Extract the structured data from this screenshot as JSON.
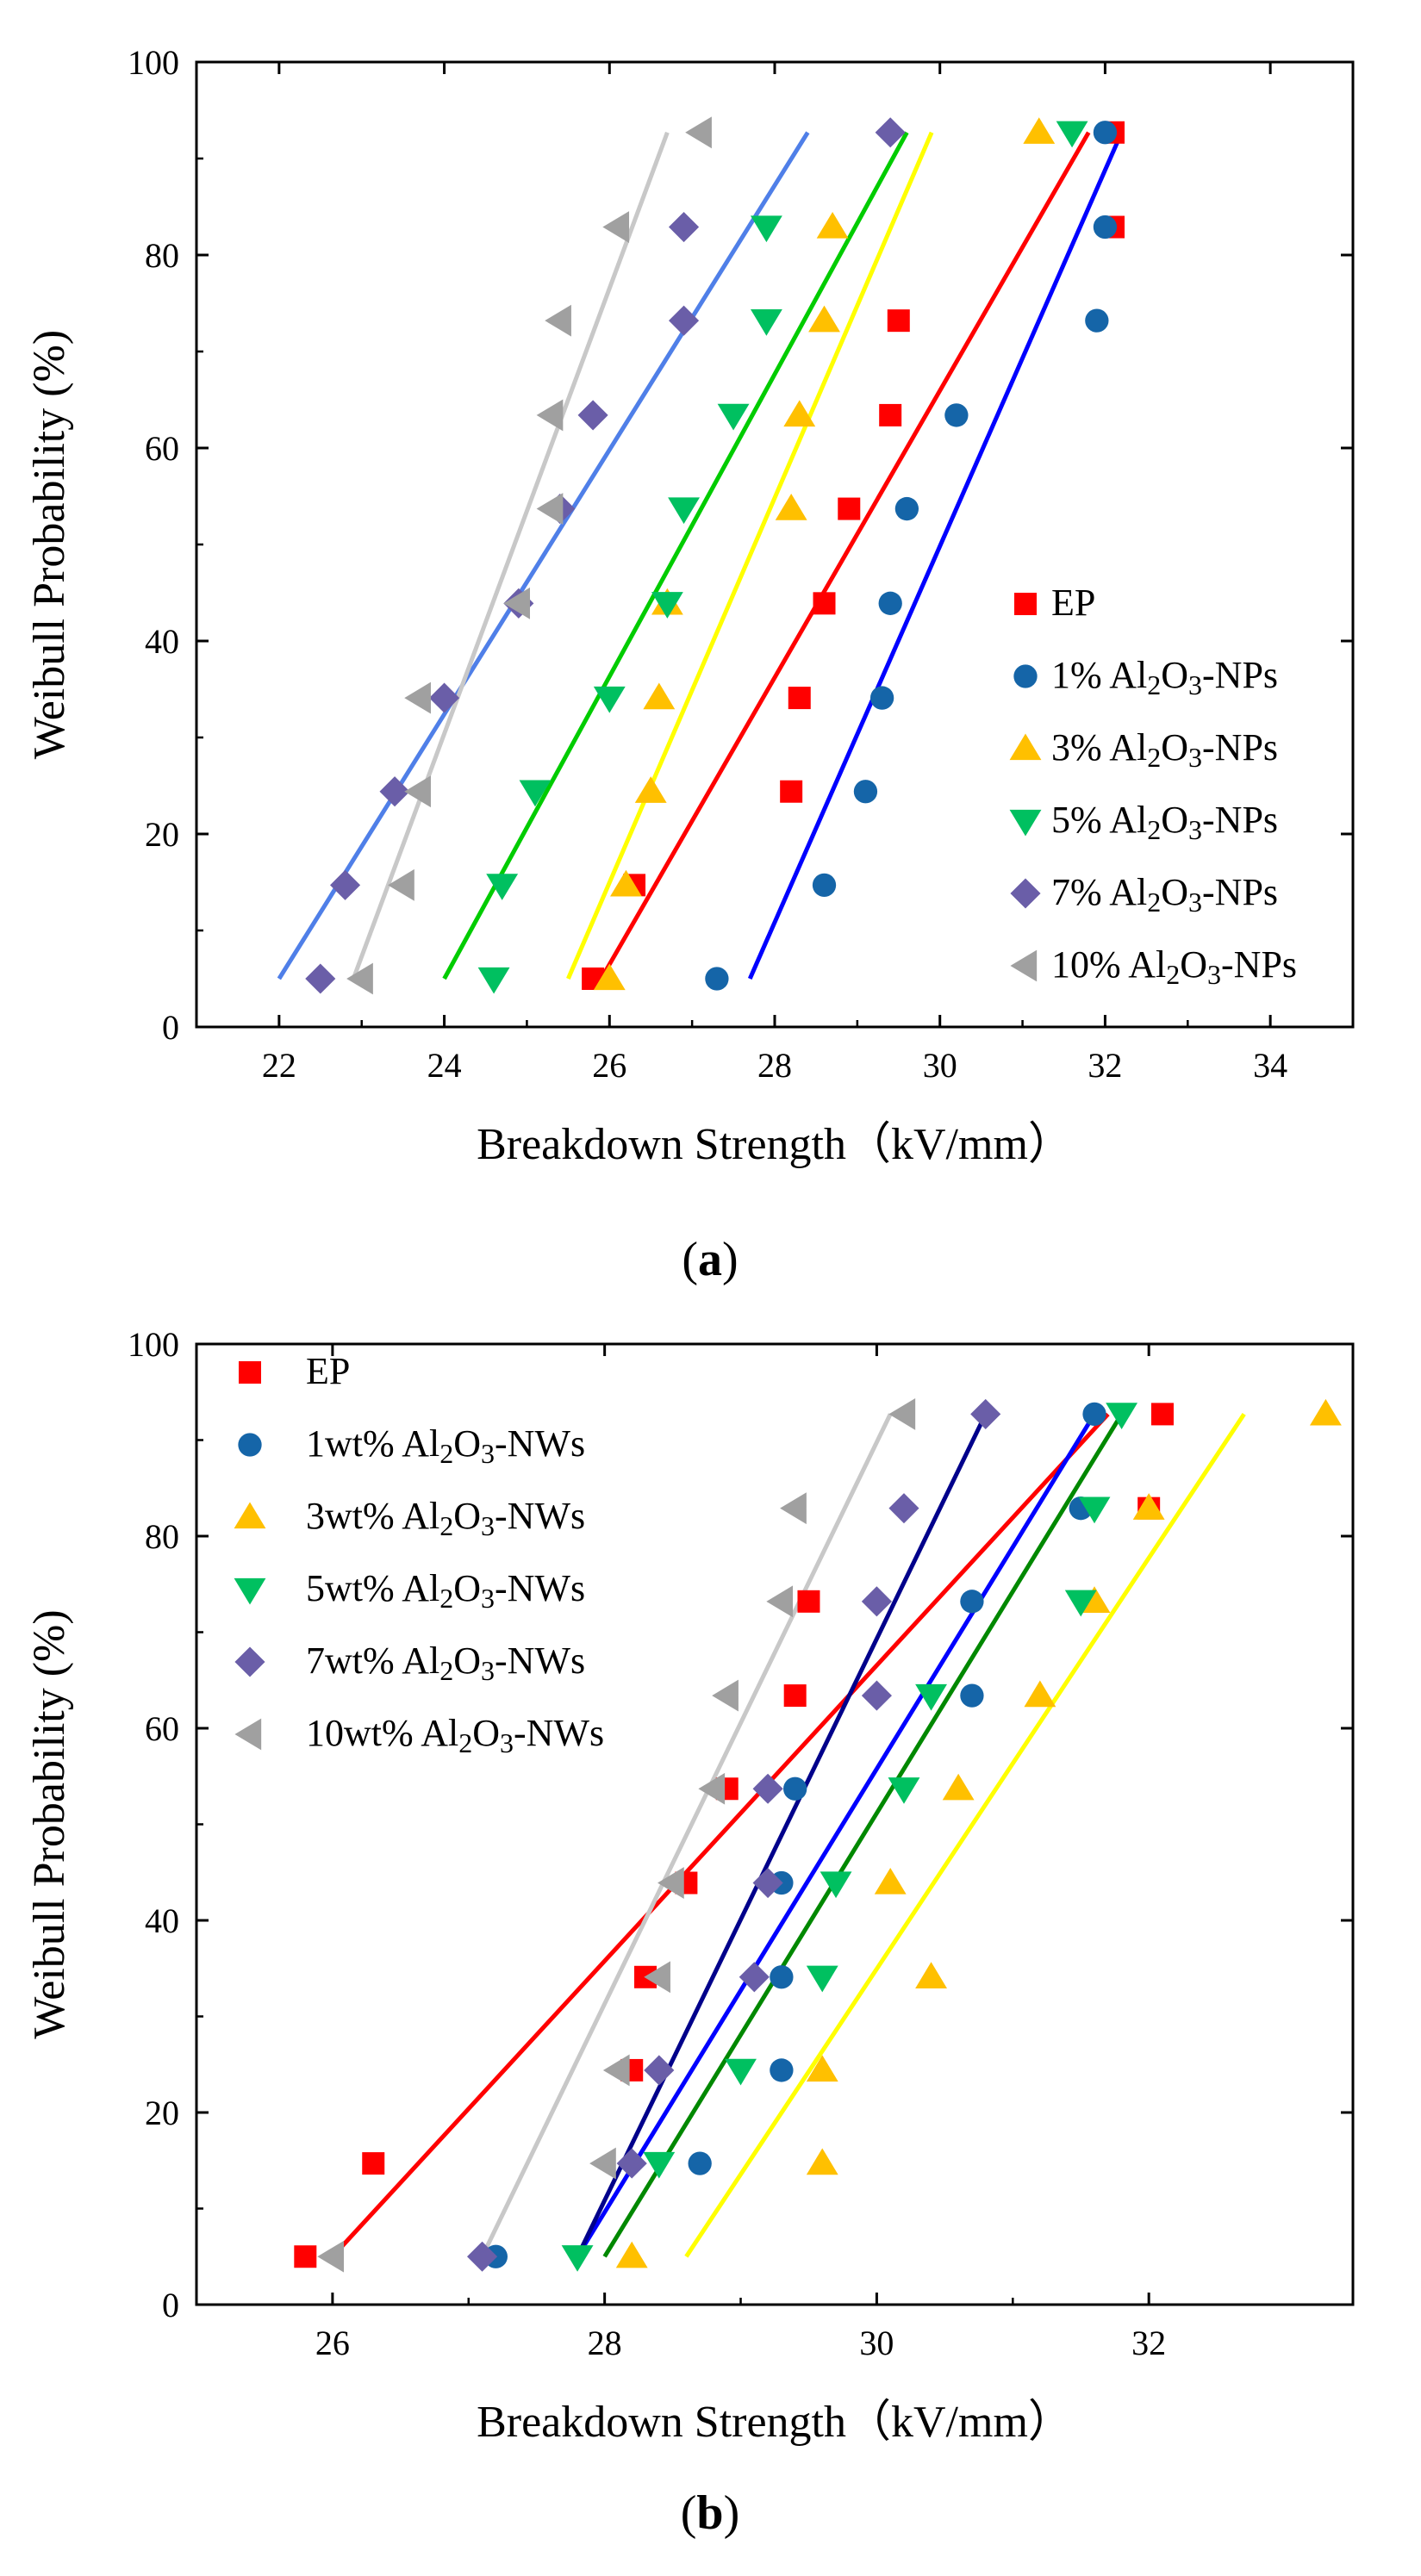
{
  "chart_data": [
    {
      "id": "a",
      "type": "scatter",
      "caption": "(a)",
      "caption_letter": "a",
      "xlabel": "Breakdown Strength（kV/mm）",
      "ylabel": "Weibull Probability (%)",
      "xlim": [
        21,
        35
      ],
      "ylim": [
        0,
        100
      ],
      "xticks": [
        22,
        24,
        26,
        28,
        30,
        32,
        34
      ],
      "yticks": [
        0,
        20,
        40,
        60,
        80,
        100
      ],
      "legend_position": "bottom-right",
      "series": [
        {
          "name": "EP",
          "label_parts": [
            "EP"
          ],
          "color": "#ff0000",
          "marker": "square",
          "line_color": "#ff0000",
          "x": [
            25.8,
            26.3,
            28.2,
            28.3,
            28.6,
            28.9,
            29.4,
            29.5,
            32.1,
            32.1
          ],
          "y": [
            5,
            14.7,
            24.4,
            34.1,
            43.9,
            53.7,
            63.4,
            73.2,
            82.9,
            92.7
          ],
          "fit": [
            [
              25.9,
              5
            ],
            [
              31.8,
              92.7
            ]
          ]
        },
        {
          "name": "1% Al2O3-NPs",
          "label_parts": [
            "1% Al",
            "2",
            "O",
            "3",
            "-NPs"
          ],
          "color": "#1565a8",
          "marker": "circle",
          "line_color": "#0000ff",
          "x": [
            27.3,
            28.6,
            29.1,
            29.3,
            29.4,
            29.6,
            30.2,
            31.9,
            32.0,
            32.0
          ],
          "y": [
            5,
            14.7,
            24.4,
            34.1,
            43.9,
            53.7,
            63.4,
            73.2,
            82.9,
            92.7
          ],
          "fit": [
            [
              27.7,
              5
            ],
            [
              32.2,
              92.7
            ]
          ]
        },
        {
          "name": "3% Al2O3-NPs",
          "label_parts": [
            "3% Al",
            "2",
            "O",
            "3",
            "-NPs"
          ],
          "color": "#ffc000",
          "marker": "triangle-up",
          "line_color": "#ffff00",
          "x": [
            26.0,
            26.2,
            26.5,
            26.6,
            26.7,
            28.2,
            28.3,
            28.6,
            28.7,
            31.2
          ],
          "y": [
            5,
            14.7,
            24.4,
            34.1,
            43.9,
            53.7,
            63.4,
            73.2,
            82.9,
            92.7
          ],
          "fit": [
            [
              25.5,
              5
            ],
            [
              29.9,
              92.7
            ]
          ]
        },
        {
          "name": "5% Al2O3-NPs",
          "label_parts": [
            "5% Al",
            "2",
            "O",
            "3",
            "-NPs"
          ],
          "color": "#00c060",
          "marker": "triangle-down",
          "line_color": "#00cc00",
          "x": [
            24.6,
            24.7,
            25.1,
            26.0,
            26.7,
            26.9,
            27.5,
            27.9,
            27.9,
            31.6
          ],
          "y": [
            5,
            14.7,
            24.4,
            34.1,
            43.9,
            53.7,
            63.4,
            73.2,
            82.9,
            92.7
          ],
          "fit": [
            [
              24.0,
              5
            ],
            [
              29.6,
              92.7
            ]
          ]
        },
        {
          "name": "7% Al2O3-NPs",
          "label_parts": [
            "7% Al",
            "2",
            "O",
            "3",
            "-NPs"
          ],
          "color": "#6a5ea8",
          "marker": "diamond",
          "line_color": "#4f7fe8",
          "x": [
            22.5,
            22.8,
            23.4,
            24.0,
            24.9,
            25.4,
            25.8,
            26.9,
            26.9,
            29.4
          ],
          "y": [
            5,
            14.7,
            24.4,
            34.1,
            43.9,
            53.7,
            63.4,
            73.2,
            82.9,
            92.7
          ],
          "fit": [
            [
              22.0,
              5
            ],
            [
              28.4,
              92.7
            ]
          ]
        },
        {
          "name": "10% Al2O3-NPs",
          "label_parts": [
            "10% Al",
            "2",
            "O",
            "3",
            "-NPs"
          ],
          "color": "#a0a0a0",
          "marker": "triangle-left",
          "line_color": "#c8c8c8",
          "x": [
            23.0,
            23.5,
            23.7,
            23.7,
            24.9,
            25.3,
            25.3,
            25.4,
            26.1,
            27.1
          ],
          "y": [
            5,
            14.7,
            24.4,
            34.1,
            43.9,
            53.7,
            63.4,
            73.2,
            82.9,
            92.7
          ],
          "fit": [
            [
              22.9,
              5
            ],
            [
              26.7,
              92.7
            ]
          ]
        }
      ]
    },
    {
      "id": "b",
      "type": "scatter",
      "caption": "(b)",
      "caption_letter": "b",
      "xlabel": "Breakdown Strength（kV/mm）",
      "ylabel": "Weibull Probability (%)",
      "xlim": [
        25,
        33.5
      ],
      "ylim": [
        0,
        100
      ],
      "xticks": [
        26,
        28,
        30,
        32
      ],
      "yticks": [
        0,
        20,
        40,
        60,
        80,
        100
      ],
      "legend_position": "top-left",
      "series": [
        {
          "name": "EP",
          "label_parts": [
            "EP"
          ],
          "color": "#ff0000",
          "marker": "square",
          "line_color": "#ff0000",
          "x": [
            25.8,
            26.3,
            28.2,
            28.3,
            28.6,
            28.9,
            29.4,
            29.5,
            32.0,
            32.1
          ],
          "y": [
            5,
            14.7,
            24.4,
            34.1,
            43.9,
            53.7,
            63.4,
            73.2,
            82.9,
            92.7
          ],
          "fit": [
            [
              26.0,
              5
            ],
            [
              31.7,
              92.7
            ]
          ]
        },
        {
          "name": "1wt% Al2O3-NWs",
          "label_parts": [
            "1wt% Al",
            "2",
            "O",
            "3",
            "-NWs"
          ],
          "color": "#1565a8",
          "marker": "circle",
          "line_color": "#0000ff",
          "x": [
            27.2,
            28.7,
            29.3,
            29.3,
            29.3,
            29.4,
            30.7,
            30.7,
            31.5,
            31.6
          ],
          "y": [
            5,
            14.7,
            24.4,
            34.1,
            43.9,
            53.7,
            63.4,
            73.2,
            82.9,
            92.7
          ],
          "fit": [
            [
              27.8,
              5
            ],
            [
              31.6,
              92.7
            ]
          ]
        },
        {
          "name": "3wt% Al2O3-NWs",
          "label_parts": [
            "3wt% Al",
            "2",
            "O",
            "3",
            "-NWs"
          ],
          "color": "#ffc000",
          "marker": "triangle-up",
          "line_color": "#ffff00",
          "x": [
            28.2,
            29.6,
            29.6,
            30.4,
            30.1,
            30.6,
            31.2,
            31.6,
            32.0,
            33.3
          ],
          "y": [
            5,
            14.7,
            24.4,
            34.1,
            43.9,
            53.7,
            63.4,
            73.2,
            82.9,
            92.7
          ],
          "fit": [
            [
              28.6,
              5
            ],
            [
              32.7,
              92.7
            ]
          ]
        },
        {
          "name": "5wt% Al2O3-NWs",
          "label_parts": [
            "5wt% Al",
            "2",
            "O",
            "3",
            "-NWs"
          ],
          "color": "#00c060",
          "marker": "triangle-down",
          "line_color": "#008800",
          "x": [
            27.8,
            28.4,
            29.0,
            29.6,
            29.7,
            30.2,
            30.4,
            31.5,
            31.6,
            31.8
          ],
          "y": [
            5,
            14.7,
            24.4,
            34.1,
            43.9,
            53.7,
            63.4,
            73.2,
            82.9,
            92.7
          ],
          "fit": [
            [
              28.0,
              5
            ],
            [
              31.8,
              92.7
            ]
          ]
        },
        {
          "name": "7wt% Al2O3-NWs",
          "label_parts": [
            "7wt% Al",
            "2",
            "O",
            "3",
            "-NWs"
          ],
          "color": "#6a5ea8",
          "marker": "diamond",
          "line_color": "#00008b",
          "x": [
            27.1,
            28.2,
            28.4,
            29.1,
            29.2,
            29.2,
            30.0,
            30.0,
            30.2,
            30.8
          ],
          "y": [
            5,
            14.7,
            24.4,
            34.1,
            43.9,
            53.7,
            63.4,
            73.2,
            82.9,
            92.7
          ],
          "fit": [
            [
              27.8,
              5
            ],
            [
              30.8,
              92.7
            ]
          ]
        },
        {
          "name": "10wt% Al2O3-NWs",
          "label_parts": [
            "10wt% Al",
            "2",
            "O",
            "3",
            "-NWs"
          ],
          "color": "#a0a0a0",
          "marker": "triangle-left",
          "line_color": "#c8c8c8",
          "x": [
            26.0,
            28.0,
            28.1,
            28.4,
            28.5,
            28.8,
            28.9,
            29.3,
            29.4,
            30.2
          ],
          "y": [
            5,
            14.7,
            24.4,
            34.1,
            43.9,
            53.7,
            63.4,
            73.2,
            82.9,
            92.7
          ],
          "fit": [
            [
              27.1,
              5
            ],
            [
              30.1,
              92.7
            ]
          ]
        }
      ]
    }
  ]
}
